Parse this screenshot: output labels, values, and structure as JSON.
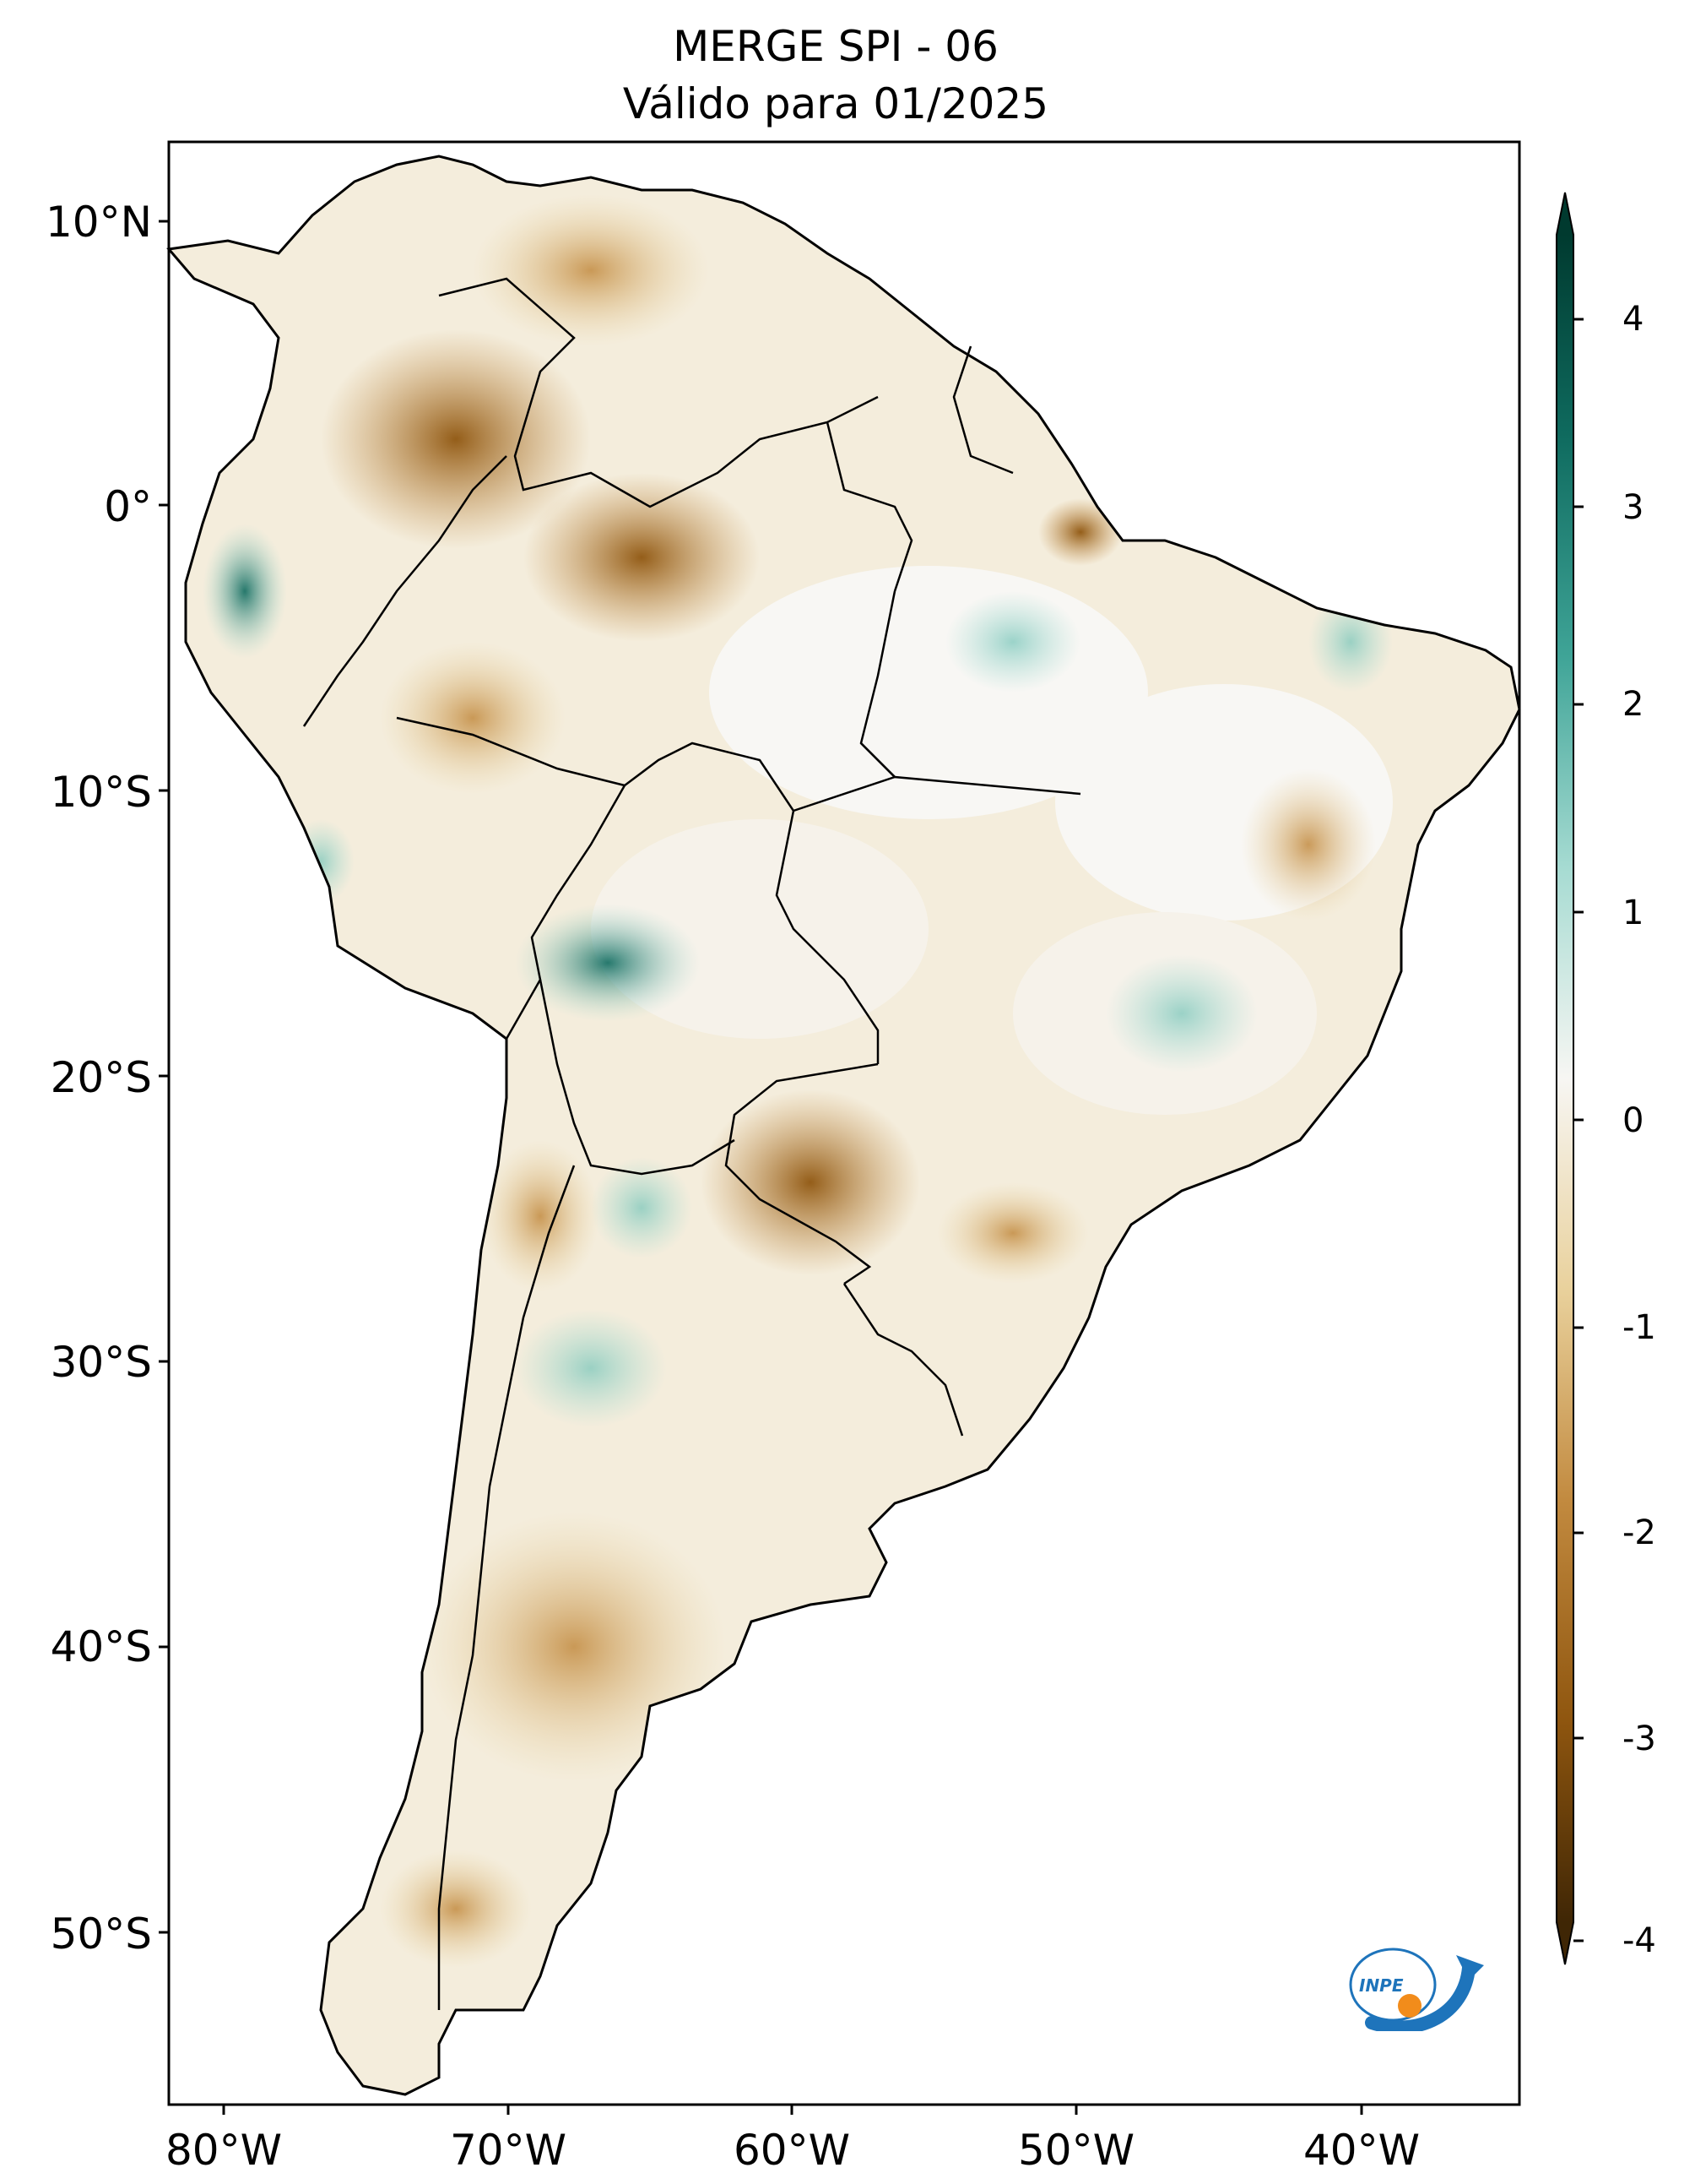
{
  "title": {
    "line1": "MERGE   SPI - 06",
    "line2": "Válido para 01/2025"
  },
  "axes": {
    "lat_ticks": [
      "10°N",
      "0°",
      "10°S",
      "20°S",
      "30°S",
      "40°S",
      "50°S"
    ],
    "lon_ticks": [
      "80°W",
      "70°W",
      "60°W",
      "50°W",
      "40°W"
    ]
  },
  "colorbar": {
    "ticks": [
      "4",
      "3",
      "2",
      "1",
      "0",
      "-1",
      "-2",
      "-3",
      "-4"
    ],
    "range": [
      -4,
      4
    ],
    "colors": {
      "dry_extreme": "#3f2605",
      "dry_strong": "#8f560f",
      "dry_moderate": "#c28a3f",
      "dry_light": "#e9d19c",
      "neutral": "#f7f6f3",
      "wet_light": "#a6dbd2",
      "wet_moderate": "#3fa497",
      "wet_strong": "#0f6b5f",
      "wet_extreme": "#003a2f"
    }
  },
  "logo": {
    "text": "INPE",
    "colors": {
      "blue": "#1e74bb",
      "orange": "#f28c1b"
    }
  }
}
